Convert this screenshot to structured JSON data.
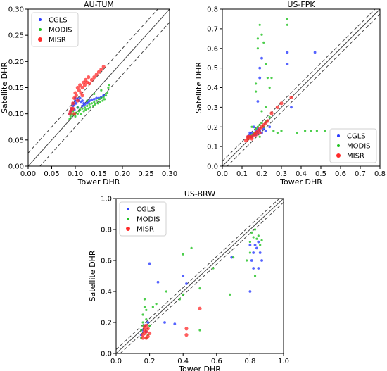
{
  "colors": {
    "CGLS": "#2b3cff",
    "MODIS": "#1fc21f",
    "MISR": "#ff2a2a"
  },
  "chart_data": [
    {
      "type": "scatter",
      "title": "AU-TUM",
      "xlabel": "Tower DHR",
      "ylabel": "Satellite DHR",
      "xlim": [
        0,
        0.3
      ],
      "ylim": [
        0,
        0.3
      ],
      "xticks": [
        "0.00",
        "0.05",
        "0.10",
        "0.15",
        "0.20",
        "0.25",
        "0.30"
      ],
      "yticks": [
        "0.00",
        "0.05",
        "0.10",
        "0.15",
        "0.20",
        "0.25",
        "0.30"
      ],
      "grid": false,
      "legend_position": "top-left",
      "reference_lines": {
        "one_to_one": true,
        "offsets": [
          0.025,
          -0.025
        ]
      },
      "series": [
        {
          "name": "CGLS",
          "points": [
            [
              0.088,
              0.1
            ],
            [
              0.09,
              0.105
            ],
            [
              0.092,
              0.11
            ],
            [
              0.095,
              0.115
            ],
            [
              0.095,
              0.12
            ],
            [
              0.098,
              0.118
            ],
            [
              0.1,
              0.125
            ],
            [
              0.1,
              0.13
            ],
            [
              0.102,
              0.12
            ],
            [
              0.105,
              0.128
            ],
            [
              0.108,
              0.125
            ],
            [
              0.11,
              0.13
            ],
            [
              0.112,
              0.122
            ],
            [
              0.115,
              0.125
            ],
            [
              0.118,
              0.12
            ],
            [
              0.12,
              0.118
            ],
            [
              0.125,
              0.12
            ],
            [
              0.128,
              0.122
            ],
            [
              0.13,
              0.125
            ],
            [
              0.135,
              0.127
            ],
            [
              0.14,
              0.128
            ],
            [
              0.145,
              0.13
            ],
            [
              0.15,
              0.13
            ],
            [
              0.155,
              0.132
            ],
            [
              0.16,
              0.135
            ],
            [
              0.098,
              0.108
            ],
            [
              0.105,
              0.112
            ],
            [
              0.115,
              0.115
            ]
          ]
        },
        {
          "name": "MODIS",
          "points": [
            [
              0.088,
              0.09
            ],
            [
              0.09,
              0.095
            ],
            [
              0.092,
              0.1
            ],
            [
              0.095,
              0.098
            ],
            [
              0.098,
              0.1
            ],
            [
              0.1,
              0.095
            ],
            [
              0.102,
              0.102
            ],
            [
              0.105,
              0.1
            ],
            [
              0.108,
              0.105
            ],
            [
              0.11,
              0.108
            ],
            [
              0.112,
              0.1
            ],
            [
              0.115,
              0.11
            ],
            [
              0.118,
              0.105
            ],
            [
              0.12,
              0.112
            ],
            [
              0.122,
              0.108
            ],
            [
              0.125,
              0.115
            ],
            [
              0.128,
              0.11
            ],
            [
              0.13,
              0.118
            ],
            [
              0.132,
              0.112
            ],
            [
              0.135,
              0.12
            ],
            [
              0.138,
              0.115
            ],
            [
              0.14,
              0.122
            ],
            [
              0.142,
              0.118
            ],
            [
              0.145,
              0.125
            ],
            [
              0.148,
              0.12
            ],
            [
              0.15,
              0.128
            ],
            [
              0.152,
              0.122
            ],
            [
              0.155,
              0.13
            ],
            [
              0.158,
              0.125
            ],
            [
              0.16,
              0.132
            ],
            [
              0.162,
              0.128
            ],
            [
              0.165,
              0.135
            ],
            [
              0.168,
              0.14
            ],
            [
              0.17,
              0.15
            ],
            [
              0.172,
              0.155
            ],
            [
              0.155,
              0.145
            ],
            [
              0.14,
              0.138
            ],
            [
              0.125,
              0.125
            ],
            [
              0.105,
              0.112
            ],
            [
              0.095,
              0.105
            ]
          ]
        },
        {
          "name": "MISR",
          "points": [
            [
              0.088,
              0.1
            ],
            [
              0.09,
              0.105
            ],
            [
              0.092,
              0.11
            ],
            [
              0.095,
              0.12
            ],
            [
              0.098,
              0.13
            ],
            [
              0.1,
              0.14
            ],
            [
              0.102,
              0.135
            ],
            [
              0.105,
              0.15
            ],
            [
              0.108,
              0.145
            ],
            [
              0.11,
              0.155
            ],
            [
              0.112,
              0.14
            ],
            [
              0.115,
              0.15
            ],
            [
              0.118,
              0.16
            ],
            [
              0.12,
              0.155
            ],
            [
              0.122,
              0.165
            ],
            [
              0.125,
              0.16
            ],
            [
              0.128,
              0.17
            ],
            [
              0.13,
              0.158
            ],
            [
              0.135,
              0.165
            ],
            [
              0.14,
              0.17
            ],
            [
              0.145,
              0.175
            ],
            [
              0.15,
              0.18
            ],
            [
              0.155,
              0.185
            ],
            [
              0.16,
              0.19
            ],
            [
              0.115,
              0.135
            ],
            [
              0.105,
              0.125
            ],
            [
              0.095,
              0.11
            ],
            [
              0.098,
              0.1
            ]
          ]
        }
      ]
    },
    {
      "type": "scatter",
      "title": "US-FPK",
      "xlabel": "Tower DHR",
      "ylabel": "Satellite DHR",
      "xlim": [
        0,
        0.8
      ],
      "ylim": [
        0,
        0.8
      ],
      "xticks": [
        "0.0",
        "0.1",
        "0.2",
        "0.3",
        "0.4",
        "0.5",
        "0.6",
        "0.7",
        "0.8"
      ],
      "yticks": [
        "0.0",
        "0.1",
        "0.2",
        "0.3",
        "0.4",
        "0.5",
        "0.6",
        "0.7",
        "0.8"
      ],
      "grid": false,
      "legend_position": "bottom-right",
      "reference_lines": {
        "one_to_one": true,
        "offsets": [
          0.025,
          -0.025
        ]
      },
      "series": [
        {
          "name": "CGLS",
          "points": [
            [
              0.13,
              0.15
            ],
            [
              0.14,
              0.16
            ],
            [
              0.15,
              0.17
            ],
            [
              0.16,
              0.16
            ],
            [
              0.17,
              0.18
            ],
            [
              0.18,
              0.17
            ],
            [
              0.19,
              0.18
            ],
            [
              0.2,
              0.17
            ],
            [
              0.21,
              0.19
            ],
            [
              0.22,
              0.18
            ],
            [
              0.16,
              0.2
            ],
            [
              0.18,
              0.33
            ],
            [
              0.19,
              0.45
            ],
            [
              0.2,
              0.55
            ],
            [
              0.19,
              0.5
            ],
            [
              0.33,
              0.52
            ],
            [
              0.33,
              0.58
            ],
            [
              0.47,
              0.58
            ],
            [
              0.35,
              0.3
            ],
            [
              0.24,
              0.2
            ],
            [
              0.14,
              0.17
            ],
            [
              0.15,
              0.15
            ],
            [
              0.17,
              0.16
            ],
            [
              0.18,
              0.19
            ]
          ]
        },
        {
          "name": "MODIS",
          "points": [
            [
              0.13,
              0.14
            ],
            [
              0.14,
              0.15
            ],
            [
              0.15,
              0.16
            ],
            [
              0.16,
              0.17
            ],
            [
              0.17,
              0.19
            ],
            [
              0.18,
              0.2
            ],
            [
              0.19,
              0.21
            ],
            [
              0.2,
              0.22
            ],
            [
              0.21,
              0.2
            ],
            [
              0.22,
              0.23
            ],
            [
              0.17,
              0.38
            ],
            [
              0.17,
              0.42
            ],
            [
              0.18,
              0.6
            ],
            [
              0.18,
              0.65
            ],
            [
              0.19,
              0.72
            ],
            [
              0.2,
              0.67
            ],
            [
              0.21,
              0.63
            ],
            [
              0.22,
              0.52
            ],
            [
              0.23,
              0.45
            ],
            [
              0.24,
              0.4
            ],
            [
              0.22,
              0.3
            ],
            [
              0.2,
              0.28
            ],
            [
              0.25,
              0.45
            ],
            [
              0.33,
              0.72
            ],
            [
              0.33,
              0.75
            ],
            [
              0.26,
              0.18
            ],
            [
              0.28,
              0.17
            ],
            [
              0.3,
              0.18
            ],
            [
              0.38,
              0.17
            ],
            [
              0.42,
              0.18
            ],
            [
              0.45,
              0.18
            ],
            [
              0.48,
              0.18
            ],
            [
              0.52,
              0.18
            ],
            [
              0.24,
              0.25
            ],
            [
              0.19,
              0.15
            ],
            [
              0.15,
              0.2
            ]
          ]
        },
        {
          "name": "MISR",
          "points": [
            [
              0.12,
              0.13
            ],
            [
              0.13,
              0.14
            ],
            [
              0.14,
              0.15
            ],
            [
              0.15,
              0.15
            ],
            [
              0.16,
              0.16
            ],
            [
              0.17,
              0.17
            ],
            [
              0.18,
              0.18
            ],
            [
              0.19,
              0.19
            ],
            [
              0.2,
              0.2
            ],
            [
              0.21,
              0.21
            ],
            [
              0.23,
              0.23
            ],
            [
              0.25,
              0.27
            ],
            [
              0.28,
              0.3
            ],
            [
              0.3,
              0.32
            ],
            [
              0.35,
              0.35
            ],
            [
              0.13,
              0.15
            ],
            [
              0.15,
              0.14
            ],
            [
              0.17,
              0.16
            ],
            [
              0.19,
              0.17
            ],
            [
              0.22,
              0.22
            ]
          ]
        }
      ]
    },
    {
      "type": "scatter",
      "title": "US-BRW",
      "xlabel": "Tower DHR",
      "ylabel": "Satellite DHR",
      "xlim": [
        0,
        1.0
      ],
      "ylim": [
        0,
        1.0
      ],
      "xticks": [
        "0.0",
        "0.2",
        "0.4",
        "0.6",
        "0.8",
        "1.0"
      ],
      "yticks": [
        "0.0",
        "0.2",
        "0.4",
        "0.6",
        "0.8",
        "1.0"
      ],
      "grid": false,
      "legend_position": "top-left",
      "reference_lines": {
        "one_to_one": true,
        "offsets": [
          0.025,
          -0.025
        ]
      },
      "series": [
        {
          "name": "CGLS",
          "points": [
            [
              0.15,
              0.12
            ],
            [
              0.16,
              0.15
            ],
            [
              0.17,
              0.18
            ],
            [
              0.18,
              0.14
            ],
            [
              0.19,
              0.2
            ],
            [
              0.2,
              0.58
            ],
            [
              0.25,
              0.46
            ],
            [
              0.29,
              0.2
            ],
            [
              0.35,
              0.19
            ],
            [
              0.4,
              0.5
            ],
            [
              0.42,
              0.45
            ],
            [
              0.8,
              0.4
            ],
            [
              0.81,
              0.6
            ],
            [
              0.82,
              0.65
            ],
            [
              0.83,
              0.7
            ],
            [
              0.84,
              0.68
            ],
            [
              0.85,
              0.72
            ],
            [
              0.86,
              0.65
            ],
            [
              0.87,
              0.6
            ],
            [
              0.82,
              0.55
            ],
            [
              0.8,
              0.7
            ],
            [
              0.85,
              0.55
            ],
            [
              0.69,
              0.62
            ]
          ]
        },
        {
          "name": "MODIS",
          "points": [
            [
              0.15,
              0.1
            ],
            [
              0.15,
              0.15
            ],
            [
              0.16,
              0.2
            ],
            [
              0.16,
              0.25
            ],
            [
              0.17,
              0.3
            ],
            [
              0.17,
              0.35
            ],
            [
              0.18,
              0.22
            ],
            [
              0.18,
              0.28
            ],
            [
              0.19,
              0.12
            ],
            [
              0.2,
              0.18
            ],
            [
              0.22,
              0.3
            ],
            [
              0.24,
              0.32
            ],
            [
              0.3,
              0.4
            ],
            [
              0.38,
              0.35
            ],
            [
              0.4,
              0.64
            ],
            [
              0.45,
              0.68
            ],
            [
              0.5,
              0.42
            ],
            [
              0.58,
              0.55
            ],
            [
              0.68,
              0.38
            ],
            [
              0.7,
              0.62
            ],
            [
              0.8,
              0.72
            ],
            [
              0.81,
              0.78
            ],
            [
              0.82,
              0.75
            ],
            [
              0.83,
              0.8
            ],
            [
              0.84,
              0.74
            ],
            [
              0.85,
              0.76
            ],
            [
              0.86,
              0.7
            ],
            [
              0.87,
              0.73
            ],
            [
              0.78,
              0.6
            ],
            [
              0.8,
              0.65
            ],
            [
              0.83,
              0.5
            ],
            [
              0.5,
              0.15
            ],
            [
              0.4,
              0.38
            ],
            [
              0.16,
              0.18
            ],
            [
              0.18,
              0.1
            ]
          ]
        },
        {
          "name": "MISR",
          "points": [
            [
              0.16,
              0.12
            ],
            [
              0.17,
              0.13
            ],
            [
              0.17,
              0.15
            ],
            [
              0.18,
              0.1
            ],
            [
              0.18,
              0.14
            ],
            [
              0.19,
              0.16
            ],
            [
              0.19,
              0.11
            ],
            [
              0.2,
              0.13
            ],
            [
              0.17,
              0.17
            ],
            [
              0.16,
              0.1
            ],
            [
              0.42,
              0.12
            ],
            [
              0.42,
              0.16
            ],
            [
              0.5,
              0.29
            ],
            [
              0.18,
              0.18
            ]
          ]
        }
      ]
    }
  ]
}
